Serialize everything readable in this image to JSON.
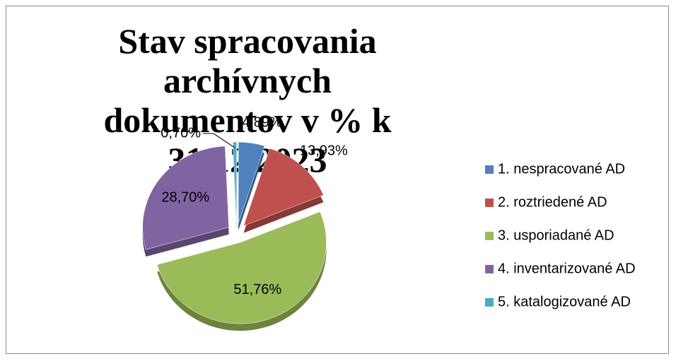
{
  "chart_data": {
    "type": "pie",
    "title": "Stav spracovania archívnych dokumentov v % k 31.12.2023",
    "categories": [
      "1. nespracované AD",
      "2. roztriedené AD",
      "3. usporiadané AD",
      "4. inventarizované AD",
      "5. katalogizované AD"
    ],
    "values": [
      4.89,
      13.93,
      51.76,
      28.7,
      0.7
    ],
    "value_labels": [
      "4,89%",
      "13,93%",
      "51,76%",
      "28,70%",
      "0,70%"
    ],
    "colors": [
      "#4f81bd",
      "#c0504d",
      "#9bbb59",
      "#8064a2",
      "#4bacc6"
    ],
    "legend": "right"
  }
}
